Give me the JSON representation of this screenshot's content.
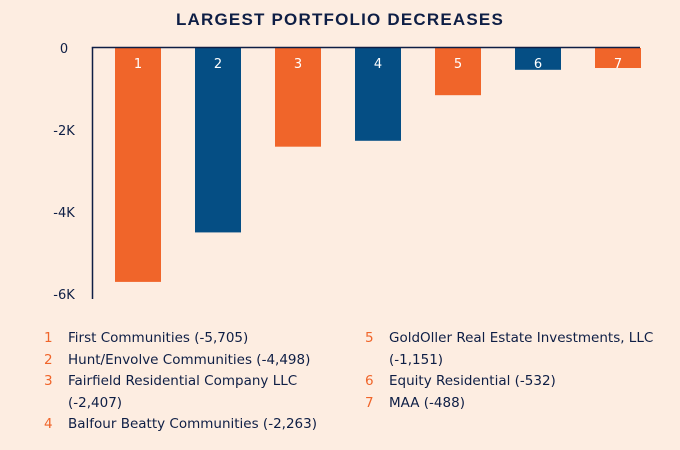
{
  "chart_data": {
    "type": "bar",
    "title": "LARGEST PORTFOLIO DECREASES",
    "xlabel": "",
    "ylabel": "",
    "ylim": [
      -6000,
      0
    ],
    "yticks": [
      0,
      -2000,
      -4000,
      -6000
    ],
    "ytick_labels": [
      "0",
      "-2K",
      "-4K",
      "-6K"
    ],
    "grid": false,
    "categories": [
      "1",
      "2",
      "3",
      "4",
      "5",
      "6",
      "7"
    ],
    "values": [
      -5705,
      -4498,
      -2407,
      -2263,
      -1151,
      -532,
      -488
    ],
    "bar_colors": [
      "#F0652A",
      "#054E84",
      "#F0652A",
      "#054E84",
      "#F0652A",
      "#054E84",
      "#F0652A"
    ],
    "legend_placement": "bottom",
    "legend": [
      {
        "num": "1",
        "text": "First Communities (-5,705)"
      },
      {
        "num": "2",
        "text": "Hunt/Envolve Communities (-4,498)"
      },
      {
        "num": "3",
        "text": "Fairfield Residential Company LLC (-2,407)"
      },
      {
        "num": "4",
        "text": "Balfour Beatty Communities (-2,263)"
      },
      {
        "num": "5",
        "text": "GoldOller Real Estate Investments, LLC (-1,151)"
      },
      {
        "num": "6",
        "text": "Equity Residential (-532)"
      },
      {
        "num": "7",
        "text": "MAA (-488)"
      }
    ]
  },
  "colors": {
    "background": "#FDEDE1",
    "text": "#0E1E45",
    "orange": "#F0652A",
    "navy": "#054E84",
    "axis": "#0E1E45"
  }
}
